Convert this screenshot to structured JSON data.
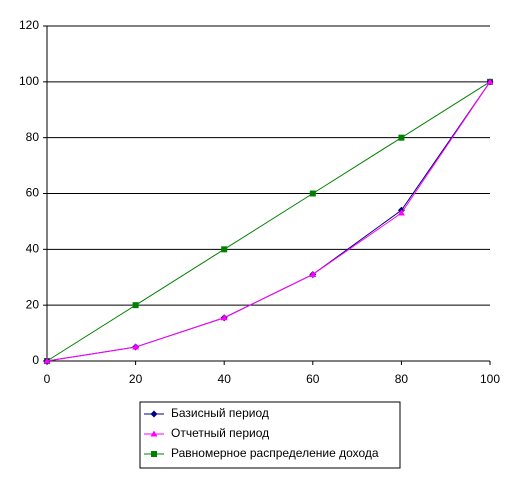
{
  "chart_data": {
    "type": "line",
    "x": [
      0,
      20,
      40,
      60,
      80,
      100
    ],
    "series": [
      {
        "name": "Базисный период",
        "color": "#000080",
        "marker": "diamond",
        "values": [
          0,
          5,
          15.5,
          31,
          54,
          100
        ]
      },
      {
        "name": "Отчетный период",
        "color": "#ff00ff",
        "marker": "triangle",
        "values": [
          0,
          5,
          15.5,
          31,
          53,
          100
        ]
      },
      {
        "name": "Равномерное распределение дохода",
        "color": "#008000",
        "marker": "square",
        "values": [
          0,
          20,
          40,
          60,
          80,
          100
        ]
      }
    ],
    "xlim": [
      0,
      100
    ],
    "xticks": [
      0,
      20,
      40,
      60,
      80,
      100
    ],
    "ylim": [
      0,
      120
    ],
    "yticks": [
      0,
      20,
      40,
      60,
      80,
      100,
      120
    ],
    "grid": true,
    "legend": "bottom"
  }
}
